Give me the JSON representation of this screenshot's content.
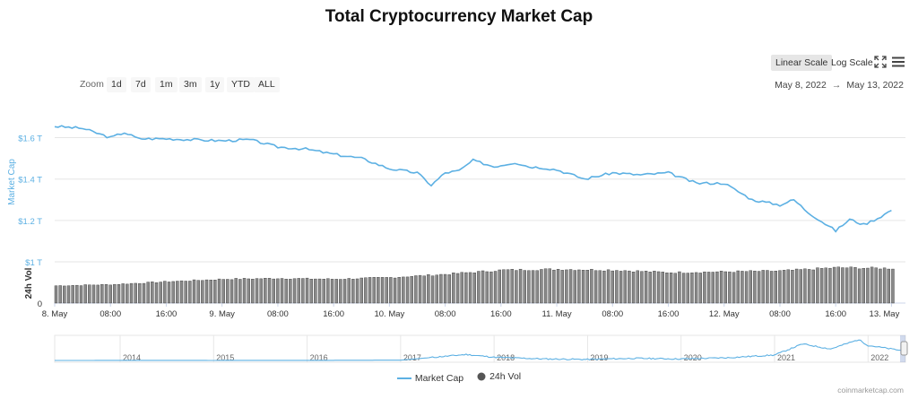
{
  "title": "Total Cryptocurrency Market Cap",
  "controls": {
    "linear_scale": "Linear Scale",
    "log_scale": "Log Scale",
    "zoom_label": "Zoom",
    "zoom_buttons": [
      "1d",
      "7d",
      "1m",
      "3m",
      "1y",
      "YTD",
      "ALL"
    ],
    "range_from": "May 8, 2022",
    "range_arrow": "→",
    "range_to": "May 13, 2022"
  },
  "icons": {
    "fullscreen": "fullscreen-icon",
    "menu": "hamburger-menu-icon"
  },
  "colors": {
    "market_cap": "#5cb0e3",
    "volume": "#555555",
    "navigator_line": "#5cb0e3"
  },
  "chart_data": {
    "type": "line",
    "title": "Total Cryptocurrency Market Cap",
    "x_tick_labels": [
      "8. May",
      "08:00",
      "16:00",
      "9. May",
      "08:00",
      "16:00",
      "10. May",
      "08:00",
      "16:00",
      "11. May",
      "08:00",
      "16:00",
      "12. May",
      "08:00",
      "16:00",
      "13. May"
    ],
    "market_cap": {
      "name": "Market Cap",
      "ylabel": "Market Cap",
      "yticks": [
        "$1 T",
        "$1.2 T",
        "$1.4 T",
        "$1.6 T"
      ],
      "ylim": [
        1.0,
        1.78
      ],
      "unit": "T",
      "x_hours": [
        0,
        4,
        8,
        10,
        12,
        16,
        20,
        24,
        28,
        32,
        36,
        40,
        44,
        48,
        52,
        54,
        56,
        58,
        60,
        63,
        66,
        68,
        70,
        72,
        76,
        80,
        84,
        88,
        92,
        96,
        100,
        104,
        106,
        108,
        112,
        114,
        116,
        118,
        120
      ],
      "values": [
        1.655,
        1.645,
        1.6,
        1.625,
        1.595,
        1.595,
        1.59,
        1.585,
        1.59,
        1.555,
        1.545,
        1.52,
        1.5,
        1.45,
        1.43,
        1.37,
        1.43,
        1.44,
        1.49,
        1.46,
        1.48,
        1.46,
        1.455,
        1.445,
        1.4,
        1.43,
        1.42,
        1.43,
        1.38,
        1.38,
        1.3,
        1.275,
        1.3,
        1.24,
        1.15,
        1.205,
        1.18,
        1.21,
        1.25
      ]
    },
    "volume": {
      "name": "24h Vol",
      "ylabel": "24h Vol",
      "yticks": [
        "0"
      ],
      "x_hours": [
        0,
        8,
        16,
        24,
        32,
        40,
        48,
        56,
        64,
        72,
        80,
        88,
        96,
        104,
        112,
        120
      ],
      "relative_level": [
        0.42,
        0.45,
        0.52,
        0.58,
        0.6,
        0.58,
        0.62,
        0.7,
        0.8,
        0.82,
        0.8,
        0.74,
        0.76,
        0.78,
        0.86,
        0.84
      ]
    },
    "navigator": {
      "year_labels": [
        "2014",
        "2015",
        "2016",
        "2017",
        "2018",
        "2019",
        "2020",
        "2021",
        "2022"
      ],
      "years": [
        2013.3,
        2014,
        2015,
        2016,
        2017,
        2017.7,
        2018,
        2018.5,
        2019,
        2019.5,
        2020,
        2020.5,
        2021,
        2021.3,
        2021.6,
        2021.9,
        2022,
        2022.4
      ],
      "values": [
        0.0,
        0.01,
        0.006,
        0.01,
        0.04,
        0.83,
        0.45,
        0.22,
        0.14,
        0.3,
        0.21,
        0.38,
        0.76,
        2.3,
        1.6,
        2.9,
        2.1,
        1.3
      ]
    },
    "legend": [
      "Market Cap",
      "24h Vol"
    ],
    "grid": true,
    "legend_position": "bottom-center"
  },
  "credit": "coinmarketcap.com"
}
